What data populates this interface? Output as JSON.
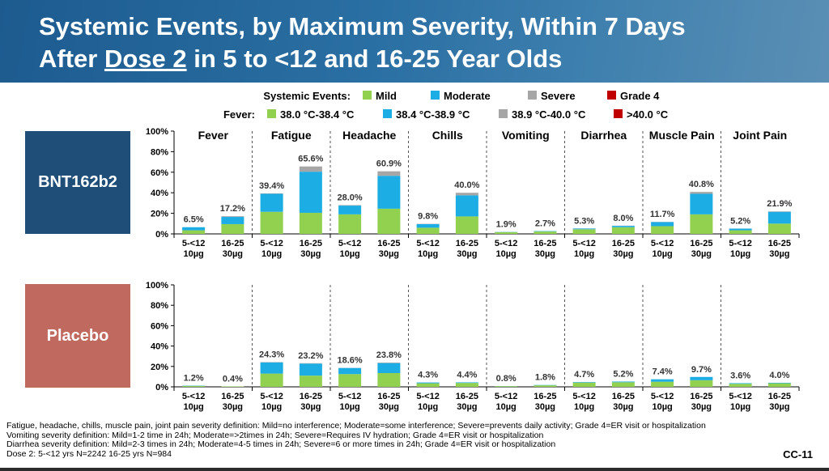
{
  "title": {
    "line1": "Systemic Events, by Maximum Severity, Within 7 Days",
    "line2_prefix": "After ",
    "line2_underlined": "Dose 2",
    "line2_suffix": " in 5 to <12 and 16-25 Year Olds"
  },
  "group_labels": {
    "top": "BNT162b2",
    "bottom": "Placebo"
  },
  "legend": {
    "row1_title": "Systemic Events:",
    "row1_items": [
      "Mild",
      "Moderate",
      "Severe",
      "Grade 4"
    ],
    "row2_title": "Fever:",
    "row2_items": [
      "38.0 °C-38.4 °C",
      "38.4 °C-38.9 °C",
      "38.9 °C-40.0 °C",
      ">40.0 °C"
    ]
  },
  "colors": {
    "mild": "#92d050",
    "moderate": "#1cade4",
    "severe": "#a6a6a6",
    "grade4": "#c00000"
  },
  "footnotes": [
    "Fatigue, headache, chills, muscle pain, joint pain severity definition: Mild=no interference; Moderate=some interference; Severe=prevents daily activity; Grade 4=ER visit or hospitalization",
    "Vomiting severity definition: Mild=1-2 time in 24h; Moderate=>2times in 24h; Severe=Requires IV hydration; Grade 4=ER visit or hospitalization",
    "Diarrhea severity definition: Mild=2-3 times in 24h; Moderate=4-5 times in 24h; Severe=6 or more times in 24h; Grade 4=ER visit or hospitalization",
    "Dose 2: 5-<12 yrs N=2242 16-25 yrs N=984"
  ],
  "slide_number": "CC-11",
  "chart_data": {
    "type": "bar",
    "stacked": true,
    "ylim": [
      0,
      100
    ],
    "yticks": [
      "0%",
      "20%",
      "40%",
      "60%",
      "80%",
      "100%"
    ],
    "events": [
      "Fever",
      "Fatigue",
      "Headache",
      "Chills",
      "Vomiting",
      "Diarrhea",
      "Muscle Pain",
      "Joint Pain"
    ],
    "bar_labels": [
      [
        "5-<12",
        "10µg"
      ],
      [
        "16-25",
        "30µg"
      ]
    ],
    "series": [
      "Mild",
      "Moderate",
      "Severe",
      "Grade 4"
    ],
    "panels": [
      {
        "group": "BNT162b2",
        "totals": [
          "6.5%",
          "17.2%",
          "39.4%",
          "65.6%",
          "28.0%",
          "60.9%",
          "9.8%",
          "40.0%",
          "1.9%",
          "2.7%",
          "5.3%",
          "8.0%",
          "11.7%",
          "40.8%",
          "5.2%",
          "21.9%"
        ],
        "mild": [
          3.5,
          9.5,
          21.5,
          20.5,
          19,
          24.5,
          6,
          17,
          1.7,
          2.3,
          4.5,
          6.5,
          7.5,
          19,
          3.5,
          10
        ],
        "moderate": [
          3.0,
          7.0,
          17.5,
          40.0,
          8.5,
          32.0,
          3.5,
          20.5,
          0.2,
          0.4,
          0.7,
          1.3,
          4.0,
          20.0,
          1.6,
          11.5
        ],
        "severe": [
          0.0,
          0.7,
          0.4,
          5.1,
          0.5,
          4.4,
          0.3,
          2.5,
          0.0,
          0.0,
          0.1,
          0.2,
          0.2,
          1.8,
          0.1,
          0.4
        ],
        "grade4": [
          0,
          0,
          0,
          0,
          0,
          0,
          0,
          0,
          0,
          0,
          0,
          0,
          0,
          0,
          0,
          0
        ]
      },
      {
        "group": "Placebo",
        "totals": [
          "1.2%",
          "0.4%",
          "24.3%",
          "23.2%",
          "18.6%",
          "23.8%",
          "4.3%",
          "4.4%",
          "0.8%",
          "1.8%",
          "4.7%",
          "5.2%",
          "7.4%",
          "9.7%",
          "3.6%",
          "4.0%"
        ],
        "mild": [
          0.9,
          0.4,
          13.0,
          11.0,
          12.5,
          13.5,
          3.5,
          3.8,
          0.7,
          1.5,
          4.2,
          4.5,
          5.0,
          6.5,
          3.0,
          3.5
        ],
        "moderate": [
          0.3,
          0.0,
          11.0,
          11.8,
          6.0,
          9.8,
          0.8,
          0.6,
          0.1,
          0.3,
          0.5,
          0.7,
          2.4,
          3.2,
          0.6,
          0.5
        ],
        "severe": [
          0.0,
          0.0,
          0.3,
          0.4,
          0.1,
          0.5,
          0.0,
          0.0,
          0.0,
          0.0,
          0.0,
          0.0,
          0.0,
          0.0,
          0.0,
          0.0
        ],
        "grade4": [
          0,
          0,
          0,
          0,
          0,
          0,
          0,
          0,
          0,
          0,
          0,
          0,
          0,
          0,
          0,
          0
        ]
      }
    ]
  }
}
